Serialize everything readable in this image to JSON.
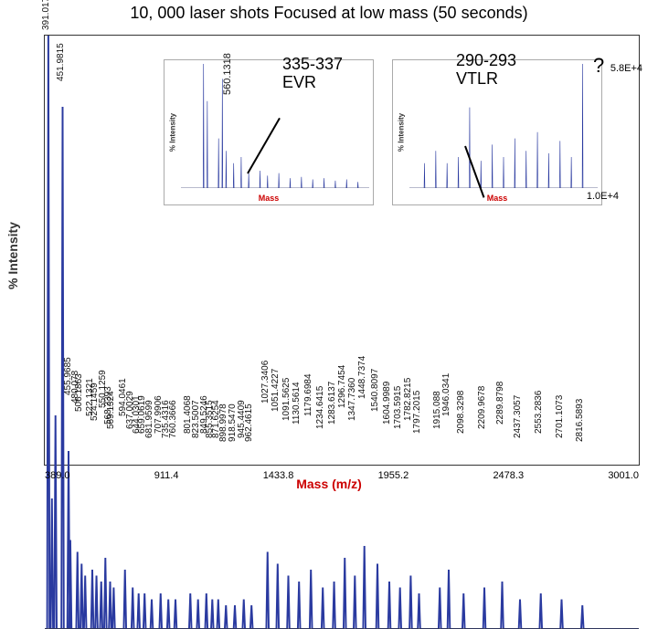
{
  "title": "10, 000 laser shots Focused at low mass (50 seconds)",
  "axes": {
    "y_label": "% Intensity",
    "x_label": "Mass (m/z)",
    "x_ticks": [
      "389.0",
      "911.4",
      "1433.8",
      "1955.2",
      "2478.3",
      "3001.0"
    ],
    "ylim": [
      0,
      100
    ]
  },
  "colors": {
    "spectrum": "#2a3aa0",
    "baseline": "#333333",
    "axis_red": "#c00000",
    "anno_red": "#d00000"
  },
  "annotations": {
    "left": {
      "line1": "335-337",
      "line2": "EVR"
    },
    "right": {
      "line1": "290-293",
      "line2": "VTLR"
    },
    "qmark": "?"
  },
  "sci": {
    "main": "5.8E+4",
    "inset": "1.0E+4"
  },
  "main_peaks": [
    {
      "x": 0.006,
      "h": 100,
      "label": "391.0179"
    },
    {
      "x": 0.018,
      "h": 36,
      "label": ""
    },
    {
      "x": 0.03,
      "h": 88,
      "label": "451.9815"
    },
    {
      "x": 0.043,
      "h": 15,
      "label": "455.9685"
    },
    {
      "x": 0.055,
      "h": 13,
      "label": "480.078"
    },
    {
      "x": 0.062,
      "h": 11,
      "label": "506.1863"
    },
    {
      "x": 0.068,
      "h": 9,
      "label": ""
    },
    {
      "x": 0.08,
      "h": 10,
      "label": "522.1321"
    },
    {
      "x": 0.087,
      "h": 9,
      "label": "524.1459"
    },
    {
      "x": 0.095,
      "h": 8,
      "label": ""
    },
    {
      "x": 0.102,
      "h": 12,
      "label": "550.1259"
    },
    {
      "x": 0.11,
      "h": 8,
      "label": "568.2393"
    },
    {
      "x": 0.116,
      "h": 7,
      "label": "569.1324"
    },
    {
      "x": 0.135,
      "h": 10,
      "label": "594.0461"
    },
    {
      "x": 0.148,
      "h": 7,
      "label": "637.0029"
    },
    {
      "x": 0.158,
      "h": 6,
      "label": "644.0301"
    },
    {
      "x": 0.168,
      "h": 6,
      "label": "659.0619"
    },
    {
      "x": 0.18,
      "h": 5,
      "label": "681.9599"
    },
    {
      "x": 0.195,
      "h": 6,
      "label": "707.9906"
    },
    {
      "x": 0.208,
      "h": 5,
      "label": "735.4316"
    },
    {
      "x": 0.22,
      "h": 5,
      "label": "760.3666"
    },
    {
      "x": 0.245,
      "h": 6,
      "label": "801.4068"
    },
    {
      "x": 0.258,
      "h": 5,
      "label": "823.5007"
    },
    {
      "x": 0.272,
      "h": 6,
      "label": "849.5246"
    },
    {
      "x": 0.282,
      "h": 5,
      "label": "855.3515"
    },
    {
      "x": 0.292,
      "h": 5,
      "label": "871.6254"
    },
    {
      "x": 0.305,
      "h": 4,
      "label": "898.9978"
    },
    {
      "x": 0.32,
      "h": 4,
      "label": "918.5470"
    },
    {
      "x": 0.335,
      "h": 5,
      "label": "945.4409"
    },
    {
      "x": 0.348,
      "h": 4,
      "label": "962.4615"
    },
    {
      "x": 0.04,
      "h": 30,
      "label": ""
    },
    {
      "x": 0.012,
      "h": 22,
      "label": ""
    },
    {
      "x": 0.375,
      "h": 13,
      "label": "1027.3406"
    },
    {
      "x": 0.392,
      "h": 11,
      "label": "1051.4227"
    },
    {
      "x": 0.41,
      "h": 9,
      "label": "1091.5625"
    },
    {
      "x": 0.428,
      "h": 8,
      "label": "1130.5614"
    },
    {
      "x": 0.448,
      "h": 10,
      "label": "1179.6984"
    },
    {
      "x": 0.468,
      "h": 7,
      "label": "1234.6415"
    },
    {
      "x": 0.487,
      "h": 8,
      "label": "1283.6137"
    },
    {
      "x": 0.505,
      "h": 12,
      "label": "1296.7454"
    },
    {
      "x": 0.522,
      "h": 9,
      "label": "1347.7360"
    },
    {
      "x": 0.538,
      "h": 14,
      "label": "1448.7374"
    },
    {
      "x": 0.56,
      "h": 11,
      "label": "1540.8097"
    },
    {
      "x": 0.58,
      "h": 8,
      "label": "1604.9989"
    },
    {
      "x": 0.598,
      "h": 7,
      "label": "1703.5915"
    },
    {
      "x": 0.616,
      "h": 9,
      "label": "1782.8215"
    },
    {
      "x": 0.63,
      "h": 6,
      "label": "1797.2015"
    },
    {
      "x": 0.665,
      "h": 7,
      "label": "1915.088"
    },
    {
      "x": 0.68,
      "h": 10,
      "label": "1946.0341"
    },
    {
      "x": 0.705,
      "h": 6,
      "label": "2098.3298"
    },
    {
      "x": 0.74,
      "h": 7,
      "label": "2209.9678"
    },
    {
      "x": 0.77,
      "h": 8,
      "label": "2289.8798"
    },
    {
      "x": 0.8,
      "h": 5,
      "label": "2437.3057"
    },
    {
      "x": 0.835,
      "h": 6,
      "label": "2553.2836"
    },
    {
      "x": 0.87,
      "h": 5,
      "label": "2701.1073"
    },
    {
      "x": 0.905,
      "h": 4,
      "label": "2816.5893"
    }
  ],
  "inset_left": {
    "xaxis": "Mass",
    "y_label": "% Intensity",
    "x_range": [
      "450",
      "560",
      "670",
      "780",
      "890",
      "1000"
    ],
    "big_label": "560.1318",
    "peaks": [
      {
        "x": 0.12,
        "h": 100
      },
      {
        "x": 0.14,
        "h": 70
      },
      {
        "x": 0.2,
        "h": 40
      },
      {
        "x": 0.22,
        "h": 88
      },
      {
        "x": 0.24,
        "h": 30
      },
      {
        "x": 0.28,
        "h": 20
      },
      {
        "x": 0.32,
        "h": 25
      },
      {
        "x": 0.36,
        "h": 12
      },
      {
        "x": 0.42,
        "h": 14
      },
      {
        "x": 0.46,
        "h": 10
      },
      {
        "x": 0.52,
        "h": 12
      },
      {
        "x": 0.58,
        "h": 8
      },
      {
        "x": 0.64,
        "h": 9
      },
      {
        "x": 0.7,
        "h": 7
      },
      {
        "x": 0.76,
        "h": 8
      },
      {
        "x": 0.82,
        "h": 6
      },
      {
        "x": 0.88,
        "h": 7
      },
      {
        "x": 0.94,
        "h": 5
      }
    ]
  },
  "inset_right": {
    "xaxis": "Mass",
    "y_label": "% Intensity",
    "x_range": [
      "450",
      "560",
      "670",
      "780",
      "890",
      "1000"
    ],
    "peaks": [
      {
        "x": 0.08,
        "h": 20
      },
      {
        "x": 0.14,
        "h": 30
      },
      {
        "x": 0.2,
        "h": 20
      },
      {
        "x": 0.26,
        "h": 25
      },
      {
        "x": 0.32,
        "h": 65
      },
      {
        "x": 0.38,
        "h": 22
      },
      {
        "x": 0.44,
        "h": 35
      },
      {
        "x": 0.5,
        "h": 25
      },
      {
        "x": 0.56,
        "h": 40
      },
      {
        "x": 0.62,
        "h": 30
      },
      {
        "x": 0.68,
        "h": 45
      },
      {
        "x": 0.74,
        "h": 28
      },
      {
        "x": 0.8,
        "h": 38
      },
      {
        "x": 0.86,
        "h": 25
      },
      {
        "x": 0.92,
        "h": 100
      }
    ]
  }
}
